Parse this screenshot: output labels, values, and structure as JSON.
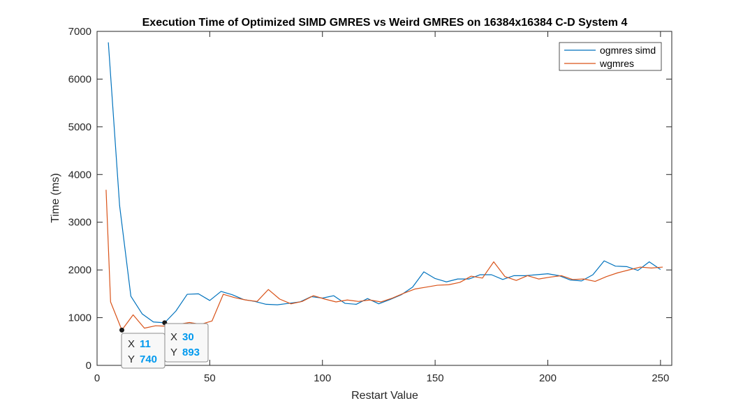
{
  "chart_data": {
    "type": "line",
    "title": "Execution Time of Optimized SIMD GMRES vs Weird GMRES on 16384x16384 C-D System 4",
    "xlabel": "Restart Value",
    "ylabel": "Time (ms)",
    "xlim": [
      0,
      255
    ],
    "ylim": [
      0,
      7000
    ],
    "xticks": [
      0,
      50,
      100,
      150,
      200,
      250
    ],
    "yticks": [
      0,
      1000,
      2000,
      3000,
      4000,
      5000,
      6000,
      7000
    ],
    "xtick_labels": [
      "0",
      "50",
      "100",
      "150",
      "200",
      "250"
    ],
    "ytick_labels": [
      "0",
      "1000",
      "2000",
      "3000",
      "4000",
      "5000",
      "6000",
      "7000"
    ],
    "grid": false,
    "legend_position": "top-right",
    "series": [
      {
        "name": "ogmres simd",
        "color": "#0072BD",
        "x": [
          5,
          10,
          15,
          20,
          25,
          30,
          35,
          40,
          45,
          50,
          55,
          60,
          65,
          70,
          75,
          80,
          85,
          90,
          95,
          100,
          105,
          110,
          115,
          120,
          125,
          130,
          135,
          140,
          145,
          150,
          155,
          160,
          165,
          170,
          175,
          180,
          185,
          190,
          195,
          200,
          205,
          210,
          215,
          220,
          225,
          230,
          235,
          240,
          245,
          250
        ],
        "values": [
          6770,
          3350,
          1450,
          1080,
          910,
          893,
          1140,
          1490,
          1500,
          1360,
          1550,
          1480,
          1380,
          1340,
          1280,
          1270,
          1300,
          1330,
          1440,
          1410,
          1460,
          1300,
          1280,
          1400,
          1290,
          1380,
          1480,
          1640,
          1960,
          1820,
          1750,
          1810,
          1810,
          1900,
          1900,
          1800,
          1880,
          1880,
          1900,
          1920,
          1880,
          1790,
          1770,
          1900,
          2190,
          2080,
          2070,
          1990,
          2170,
          2010
        ]
      },
      {
        "name": "wgmres",
        "color": "#D95319",
        "x": [
          4,
          6,
          11,
          16,
          21,
          26,
          31,
          36,
          41,
          46,
          51,
          56,
          61,
          66,
          71,
          76,
          81,
          86,
          91,
          96,
          101,
          106,
          111,
          116,
          121,
          126,
          131,
          136,
          141,
          146,
          151,
          156,
          161,
          166,
          171,
          176,
          181,
          186,
          191,
          196,
          201,
          206,
          211,
          216,
          221,
          226,
          231,
          236,
          241,
          246,
          251
        ],
        "values": [
          3680,
          1330,
          740,
          1060,
          780,
          830,
          820,
          860,
          900,
          860,
          930,
          1490,
          1420,
          1370,
          1340,
          1590,
          1390,
          1290,
          1340,
          1460,
          1390,
          1330,
          1370,
          1340,
          1370,
          1330,
          1410,
          1510,
          1600,
          1640,
          1680,
          1690,
          1740,
          1870,
          1830,
          2170,
          1860,
          1780,
          1880,
          1810,
          1850,
          1880,
          1800,
          1810,
          1760,
          1860,
          1940,
          2000,
          2060,
          2040,
          2060
        ]
      }
    ],
    "datatips": [
      {
        "x_key": "X",
        "x_value": "11",
        "y_key": "Y",
        "y_value": "740",
        "anchor_x": 11,
        "anchor_y": 740
      },
      {
        "x_key": "X",
        "x_value": "30",
        "y_key": "Y",
        "y_value": "893",
        "anchor_x": 30,
        "anchor_y": 893
      }
    ]
  }
}
